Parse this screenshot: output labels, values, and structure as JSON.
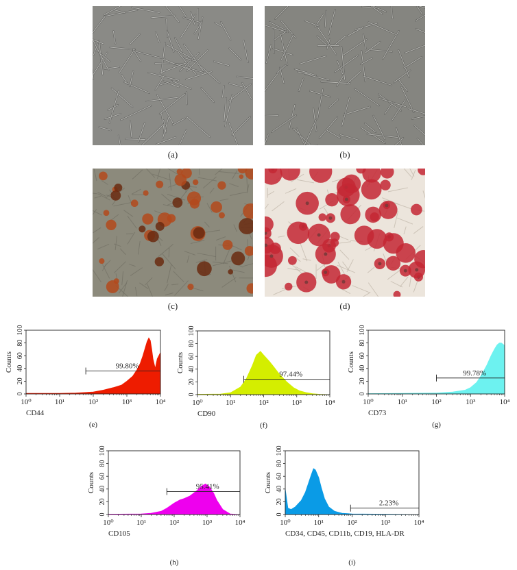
{
  "photos": [
    {
      "label": "(a)",
      "bg": "#8a8a86",
      "cell": "#cfcfca",
      "dark": "#4e4e4c"
    },
    {
      "label": "(b)",
      "bg": "#858580",
      "cell": "#cdcdc8",
      "dark": "#4a4a48"
    },
    {
      "label": "(c)",
      "bg": "#8c8a7c",
      "cell": "#b3491c",
      "dark": "#6a2a10"
    },
    {
      "label": "(d)",
      "bg": "#ece5dc",
      "cell": "#c42734",
      "dark": "#7a3a3a"
    }
  ],
  "chart_data": [
    {
      "type": "area",
      "panel": "(e)",
      "xlabel": "CD44",
      "ylabel": "Counts",
      "xscale": "log",
      "xlim": [
        1,
        10000
      ],
      "ylim": [
        0,
        100
      ],
      "xticks": [
        "10^0",
        "10^1",
        "10^2",
        "10^3",
        "10^4"
      ],
      "yticks": [
        "0",
        "20",
        "40",
        "60",
        "80",
        "100"
      ],
      "color": "#ee1c00",
      "x": [
        1,
        10,
        30,
        100,
        200,
        400,
        700,
        1000,
        1500,
        2000,
        2500,
        3000,
        3500,
        4000,
        4500,
        5000,
        5500,
        6000,
        7000,
        8000,
        10000
      ],
      "y": [
        1,
        1,
        1.5,
        3,
        6,
        10,
        14,
        20,
        28,
        38,
        48,
        60,
        72,
        82,
        88,
        84,
        70,
        55,
        40,
        55,
        65
      ],
      "gate": {
        "from": 60,
        "to": 10000,
        "y": 36,
        "label": "99.80%"
      }
    },
    {
      "type": "area",
      "panel": "(f)",
      "xlabel": "CD90",
      "ylabel": "Counts",
      "xscale": "log",
      "xlim": [
        1,
        10000
      ],
      "ylim": [
        0,
        100
      ],
      "xticks": [
        "10^0",
        "10^1",
        "10^2",
        "10^3",
        "10^4"
      ],
      "yticks": [
        "0",
        "20",
        "40",
        "60",
        "80",
        "100"
      ],
      "color": "#d4ee00",
      "x": [
        1,
        5,
        10,
        20,
        30,
        45,
        60,
        80,
        100,
        150,
        200,
        300,
        500,
        800,
        1200,
        2000,
        3000,
        5000,
        10000
      ],
      "y": [
        0.5,
        1,
        3,
        12,
        25,
        45,
        62,
        68,
        62,
        52,
        44,
        32,
        20,
        11,
        6,
        3,
        1.5,
        0.5,
        0
      ],
      "gate": {
        "from": 25,
        "to": 10000,
        "y": 24,
        "label": "97.44%"
      }
    },
    {
      "type": "area",
      "panel": "(g)",
      "xlabel": "CD73",
      "ylabel": "Counts",
      "xscale": "log",
      "xlim": [
        1,
        10000
      ],
      "ylim": [
        0,
        100
      ],
      "xticks": [
        "10^0",
        "10^1",
        "10^2",
        "10^3",
        "10^4"
      ],
      "yticks": [
        "0",
        "20",
        "40",
        "60",
        "80",
        "100"
      ],
      "color": "#6df2f0",
      "x": [
        1,
        10,
        100,
        300,
        700,
        1000,
        1500,
        2000,
        3000,
        4000,
        5000,
        6000,
        7000,
        8000,
        10000
      ],
      "y": [
        0.5,
        1,
        1.5,
        3,
        6,
        10,
        18,
        28,
        45,
        60,
        70,
        77,
        80,
        80,
        76
      ],
      "gate": {
        "from": 100,
        "to": 10000,
        "y": 25,
        "label": "99.78%"
      }
    },
    {
      "type": "area",
      "panel": "(h)",
      "xlabel": "CD105",
      "ylabel": "Counts",
      "xscale": "log",
      "xlim": [
        1,
        10000
      ],
      "ylim": [
        0,
        100
      ],
      "xticks": [
        "10^0",
        "10^1",
        "10^2",
        "10^3",
        "10^4"
      ],
      "yticks": [
        "0",
        "20",
        "40",
        "60",
        "80",
        "100"
      ],
      "color": "#ee00ee",
      "x": [
        1,
        10,
        20,
        40,
        60,
        100,
        150,
        200,
        300,
        400,
        500,
        700,
        900,
        1200,
        1600,
        2000,
        3000,
        5000,
        10000
      ],
      "y": [
        0.5,
        1,
        2,
        5,
        10,
        18,
        23,
        25,
        29,
        34,
        38,
        45,
        48,
        43,
        33,
        22,
        8,
        1,
        0
      ],
      "gate": {
        "from": 60,
        "to": 10000,
        "y": 36,
        "label": "95.41%"
      }
    },
    {
      "type": "area",
      "panel": "(i)",
      "xlabel": "CD34, CD45, CD11b, CD19, HLA-DR",
      "ylabel": "Counts",
      "xscale": "log",
      "xlim": [
        1,
        10000
      ],
      "ylim": [
        0,
        100
      ],
      "xticks": [
        "10^0",
        "10^1",
        "10^2",
        "10^3",
        "10^4"
      ],
      "yticks": [
        "0",
        "20",
        "40",
        "60",
        "80",
        "100"
      ],
      "color": "#0a9be6",
      "x": [
        1,
        1.2,
        1.5,
        2,
        3,
        4,
        5,
        6,
        7,
        8,
        10,
        12,
        15,
        20,
        30,
        50,
        100,
        1000,
        10000
      ],
      "y": [
        40,
        10,
        8,
        12,
        22,
        35,
        50,
        62,
        72,
        70,
        58,
        42,
        25,
        12,
        5,
        2,
        1,
        0.5,
        0
      ],
      "gate": {
        "from": 90,
        "to": 10000,
        "y": 10,
        "label": "2.23%"
      }
    }
  ]
}
